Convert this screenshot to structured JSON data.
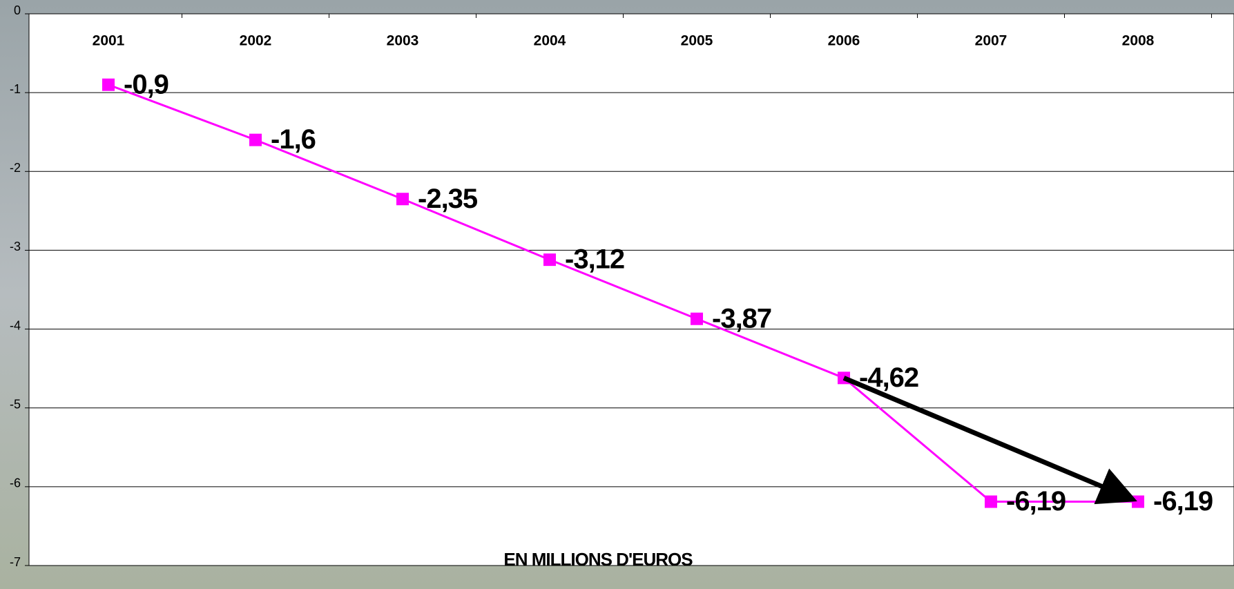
{
  "chart_data": {
    "type": "line",
    "categories": [
      "2001",
      "2002",
      "2003",
      "2004",
      "2005",
      "2006",
      "2007",
      "2008"
    ],
    "series": [
      {
        "color": "#ff00ff",
        "values": [
          -0.9,
          -1.6,
          -2.35,
          -3.12,
          -3.87,
          -4.62,
          -6.19,
          -6.19
        ],
        "value_labels": [
          "-0,9",
          "-1,6",
          "-2,35",
          "-3,12",
          "-3,87",
          "-4,62",
          "-6,19",
          "-6,19"
        ]
      }
    ],
    "ylim": [
      -7,
      0
    ],
    "yticks": [
      0,
      -1,
      -2,
      -3,
      -4,
      -5,
      -6,
      -7
    ],
    "grid": true,
    "annotation": "EN MILLIONS D'EUROS"
  }
}
